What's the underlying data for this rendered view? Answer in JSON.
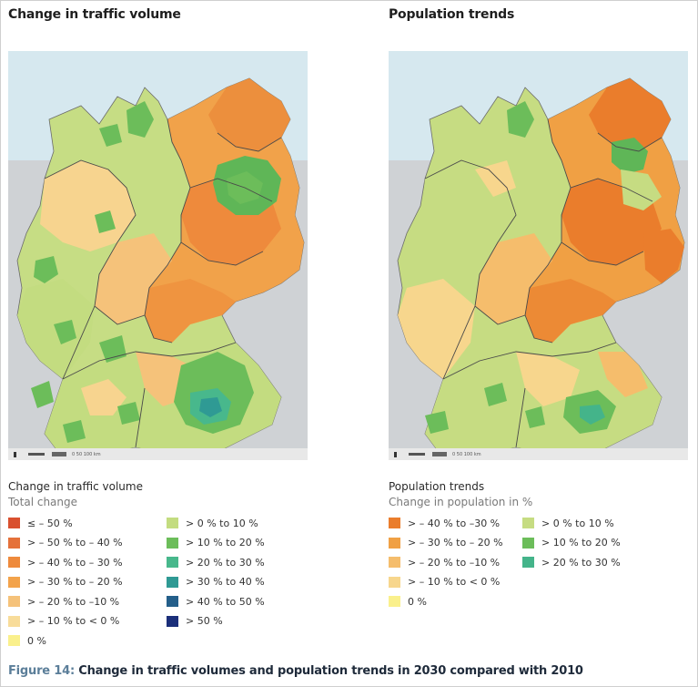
{
  "panels": [
    {
      "title": "Change in traffic volume",
      "legend_title": "Change in traffic volume",
      "legend_subtitle": "Total change",
      "legend": [
        {
          "label": "≤ – 50 %",
          "color": "#d9502f"
        },
        {
          "label": "> – 50 % to – 40 %",
          "color": "#e5713a"
        },
        {
          "label": "> – 40 % to – 30 %",
          "color": "#ee8a3c"
        },
        {
          "label": "> – 30 % to – 20 %",
          "color": "#f3a34b"
        },
        {
          "label": "> – 20 % to –10 %",
          "color": "#f5c27a"
        },
        {
          "label": "> – 10 % to < 0 %",
          "color": "#f8dc9a"
        },
        {
          "label": "0 %",
          "color": "#faf08c"
        },
        {
          "label": "> 0 % to 10 %",
          "color": "#c3dc80"
        },
        {
          "label": "> 10 % to 20 %",
          "color": "#6cbd5a"
        },
        {
          "label": "> 20 % to 30 %",
          "color": "#48b88c"
        },
        {
          "label": "> 30 % to 40 %",
          "color": "#2f9a94"
        },
        {
          "label": "> 40 % to 50 %",
          "color": "#245f8a"
        },
        {
          "label": "> 50 %",
          "color": "#1b2f7a"
        }
      ],
      "scale_text": "0  50  100 km"
    },
    {
      "title": "Population trends",
      "legend_title": "Population trends",
      "legend_subtitle": "Change in population in %",
      "legend": [
        {
          "label": "> – 40 % to –30 %",
          "color": "#ea7d2c"
        },
        {
          "label": "> – 30 % to – 20 %",
          "color": "#f0a044"
        },
        {
          "label": "> – 20 % to –10 %",
          "color": "#f5bd6c"
        },
        {
          "label": "> – 10 % to < 0 %",
          "color": "#f7d68d"
        },
        {
          "label": "0 %",
          "color": "#faf08c"
        },
        {
          "label": "> 0 % to 10 %",
          "color": "#c6dc82"
        },
        {
          "label": "> 10 % to 20 %",
          "color": "#6cbd5a"
        },
        {
          "label": "> 20 % to 30 %",
          "color": "#44b48a"
        }
      ],
      "scale_text": "0  50  100 km"
    }
  ],
  "caption": {
    "figure_label": "Figure 14:",
    "text": " Change in traffic volumes and population trends in 2030 compared with 2010"
  }
}
